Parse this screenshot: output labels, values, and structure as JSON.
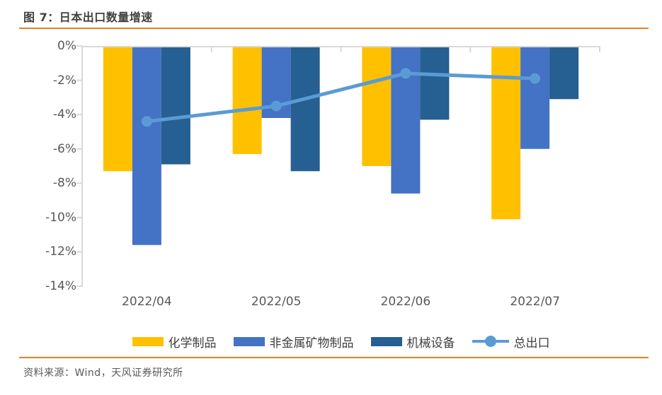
{
  "header": {
    "title": "图 7：日本出口数量增速"
  },
  "footer": {
    "source": "资料来源：Wind，天风证券研究所"
  },
  "colors": {
    "accent_orange": "#E87D23",
    "axis_line": "#D9D9D9",
    "tick_label": "#595959",
    "legend_label": "#3F3F3F",
    "title_text": "#404040"
  },
  "chart_data": {
    "type": "bar",
    "subtype": "grouped bars with overlaid line series",
    "title": "日本出口数量增速",
    "categories": [
      "2022/04",
      "2022/05",
      "2022/06",
      "2022/07"
    ],
    "series": [
      {
        "name": "化学制品",
        "slug": "chemical-products",
        "type": "bar",
        "color": "#FFC000",
        "values": [
          -7.3,
          -6.3,
          -7.0,
          -10.1
        ]
      },
      {
        "name": "非金属矿物制品",
        "slug": "non-metallic-mineral-products",
        "type": "bar",
        "color": "#4472C4",
        "values": [
          -11.6,
          -4.2,
          -8.6,
          -6.0
        ]
      },
      {
        "name": "机械设备",
        "slug": "machinery-equipment",
        "type": "bar",
        "color": "#265F91",
        "values": [
          -6.9,
          -7.3,
          -4.3,
          -3.1
        ]
      },
      {
        "name": "总出口",
        "slug": "total-exports",
        "type": "line",
        "color": "#5B9BD5",
        "values": [
          -4.4,
          -3.5,
          -1.6,
          -1.9
        ]
      }
    ],
    "xlabel": "",
    "ylabel": "",
    "ylim": [
      -14,
      0
    ],
    "y_tick_step": 2,
    "y_tick_labels": [
      "0%",
      "-2%",
      "-4%",
      "-6%",
      "-8%",
      "-10%",
      "-12%",
      "-14%"
    ],
    "grid": false,
    "legend_position": "bottom"
  }
}
